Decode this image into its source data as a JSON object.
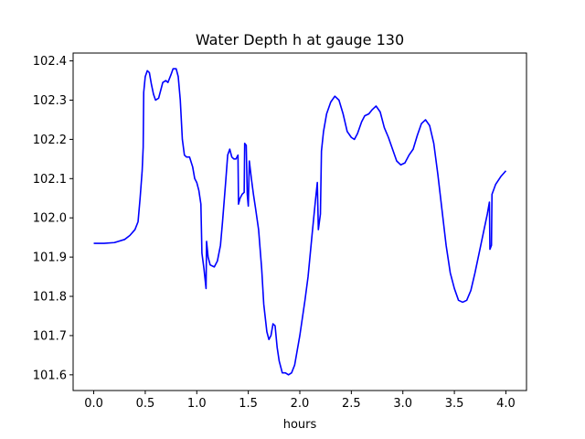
{
  "chart_data": {
    "type": "line",
    "title": "Water Depth h at gauge 130",
    "xlabel": "hours",
    "ylabel": "",
    "xlim": [
      -0.2,
      4.2
    ],
    "ylim": [
      101.56,
      102.42
    ],
    "xticks": [
      0.0,
      0.5,
      1.0,
      1.5,
      2.0,
      2.5,
      3.0,
      3.5,
      4.0
    ],
    "xtick_labels": [
      "0.0",
      "0.5",
      "1.0",
      "1.5",
      "2.0",
      "2.5",
      "3.0",
      "3.5",
      "4.0"
    ],
    "yticks": [
      101.6,
      101.7,
      101.8,
      101.9,
      102.0,
      102.1,
      102.2,
      102.3,
      102.4
    ],
    "ytick_labels": [
      "101.6",
      "101.7",
      "101.8",
      "101.9",
      "102.0",
      "102.1",
      "102.2",
      "102.3",
      "102.4"
    ],
    "grid": false,
    "line_color": "#0000ff",
    "series": [
      {
        "points": [
          [
            0.0,
            101.935
          ],
          [
            0.1,
            101.935
          ],
          [
            0.2,
            101.937
          ],
          [
            0.3,
            101.945
          ],
          [
            0.35,
            101.955
          ],
          [
            0.4,
            101.97
          ],
          [
            0.43,
            101.99
          ],
          [
            0.45,
            102.05
          ],
          [
            0.47,
            102.12
          ],
          [
            0.48,
            102.18
          ],
          [
            0.485,
            102.32
          ],
          [
            0.5,
            102.36
          ],
          [
            0.52,
            102.375
          ],
          [
            0.54,
            102.37
          ],
          [
            0.56,
            102.34
          ],
          [
            0.58,
            102.315
          ],
          [
            0.6,
            102.3
          ],
          [
            0.63,
            102.305
          ],
          [
            0.65,
            102.325
          ],
          [
            0.67,
            102.345
          ],
          [
            0.7,
            102.35
          ],
          [
            0.72,
            102.345
          ],
          [
            0.75,
            102.365
          ],
          [
            0.77,
            102.38
          ],
          [
            0.8,
            102.38
          ],
          [
            0.82,
            102.36
          ],
          [
            0.84,
            102.3
          ],
          [
            0.86,
            102.2
          ],
          [
            0.88,
            102.16
          ],
          [
            0.9,
            102.155
          ],
          [
            0.93,
            102.155
          ],
          [
            0.96,
            102.13
          ],
          [
            0.98,
            102.1
          ],
          [
            1.0,
            102.09
          ],
          [
            1.02,
            102.07
          ],
          [
            1.04,
            102.035
          ],
          [
            1.05,
            101.91
          ],
          [
            1.07,
            101.87
          ],
          [
            1.09,
            101.82
          ],
          [
            1.095,
            101.94
          ],
          [
            1.11,
            101.9
          ],
          [
            1.13,
            101.88
          ],
          [
            1.17,
            101.875
          ],
          [
            1.2,
            101.89
          ],
          [
            1.23,
            101.93
          ],
          [
            1.25,
            101.99
          ],
          [
            1.28,
            102.09
          ],
          [
            1.3,
            102.16
          ],
          [
            1.32,
            102.175
          ],
          [
            1.34,
            102.155
          ],
          [
            1.36,
            102.15
          ],
          [
            1.38,
            102.15
          ],
          [
            1.4,
            102.16
          ],
          [
            1.405,
            102.035
          ],
          [
            1.42,
            102.05
          ],
          [
            1.44,
            102.06
          ],
          [
            1.46,
            102.065
          ],
          [
            1.465,
            102.19
          ],
          [
            1.48,
            102.185
          ],
          [
            1.49,
            102.06
          ],
          [
            1.5,
            102.03
          ],
          [
            1.51,
            102.145
          ],
          [
            1.53,
            102.1
          ],
          [
            1.55,
            102.06
          ],
          [
            1.57,
            102.025
          ],
          [
            1.6,
            101.97
          ],
          [
            1.63,
            101.87
          ],
          [
            1.65,
            101.78
          ],
          [
            1.68,
            101.71
          ],
          [
            1.7,
            101.69
          ],
          [
            1.72,
            101.7
          ],
          [
            1.74,
            101.73
          ],
          [
            1.76,
            101.725
          ],
          [
            1.78,
            101.67
          ],
          [
            1.8,
            101.635
          ],
          [
            1.83,
            101.605
          ],
          [
            1.86,
            101.605
          ],
          [
            1.89,
            101.6
          ],
          [
            1.92,
            101.605
          ],
          [
            1.95,
            101.625
          ],
          [
            2.0,
            101.7
          ],
          [
            2.05,
            101.79
          ],
          [
            2.08,
            101.85
          ],
          [
            2.12,
            101.96
          ],
          [
            2.15,
            102.04
          ],
          [
            2.17,
            102.09
          ],
          [
            2.18,
            101.97
          ],
          [
            2.2,
            102.01
          ],
          [
            2.21,
            102.17
          ],
          [
            2.23,
            102.22
          ],
          [
            2.26,
            102.265
          ],
          [
            2.3,
            102.295
          ],
          [
            2.34,
            102.31
          ],
          [
            2.38,
            102.3
          ],
          [
            2.42,
            102.265
          ],
          [
            2.46,
            102.22
          ],
          [
            2.5,
            102.205
          ],
          [
            2.53,
            102.2
          ],
          [
            2.56,
            102.215
          ],
          [
            2.6,
            102.245
          ],
          [
            2.63,
            102.26
          ],
          [
            2.67,
            102.265
          ],
          [
            2.7,
            102.275
          ],
          [
            2.74,
            102.285
          ],
          [
            2.78,
            102.27
          ],
          [
            2.82,
            102.23
          ],
          [
            2.86,
            102.205
          ],
          [
            2.9,
            102.175
          ],
          [
            2.94,
            102.145
          ],
          [
            2.98,
            102.135
          ],
          [
            3.02,
            102.14
          ],
          [
            3.06,
            102.16
          ],
          [
            3.1,
            102.175
          ],
          [
            3.14,
            102.21
          ],
          [
            3.18,
            102.24
          ],
          [
            3.22,
            102.25
          ],
          [
            3.26,
            102.235
          ],
          [
            3.3,
            102.19
          ],
          [
            3.34,
            102.11
          ],
          [
            3.38,
            102.02
          ],
          [
            3.42,
            101.93
          ],
          [
            3.46,
            101.86
          ],
          [
            3.5,
            101.82
          ],
          [
            3.54,
            101.79
          ],
          [
            3.58,
            101.785
          ],
          [
            3.62,
            101.79
          ],
          [
            3.66,
            101.815
          ],
          [
            3.7,
            101.86
          ],
          [
            3.74,
            101.91
          ],
          [
            3.78,
            101.96
          ],
          [
            3.82,
            102.01
          ],
          [
            3.84,
            102.04
          ],
          [
            3.845,
            101.92
          ],
          [
            3.86,
            101.93
          ],
          [
            3.865,
            102.06
          ],
          [
            3.9,
            102.085
          ],
          [
            3.95,
            102.105
          ],
          [
            4.0,
            102.12
          ]
        ]
      }
    ]
  }
}
